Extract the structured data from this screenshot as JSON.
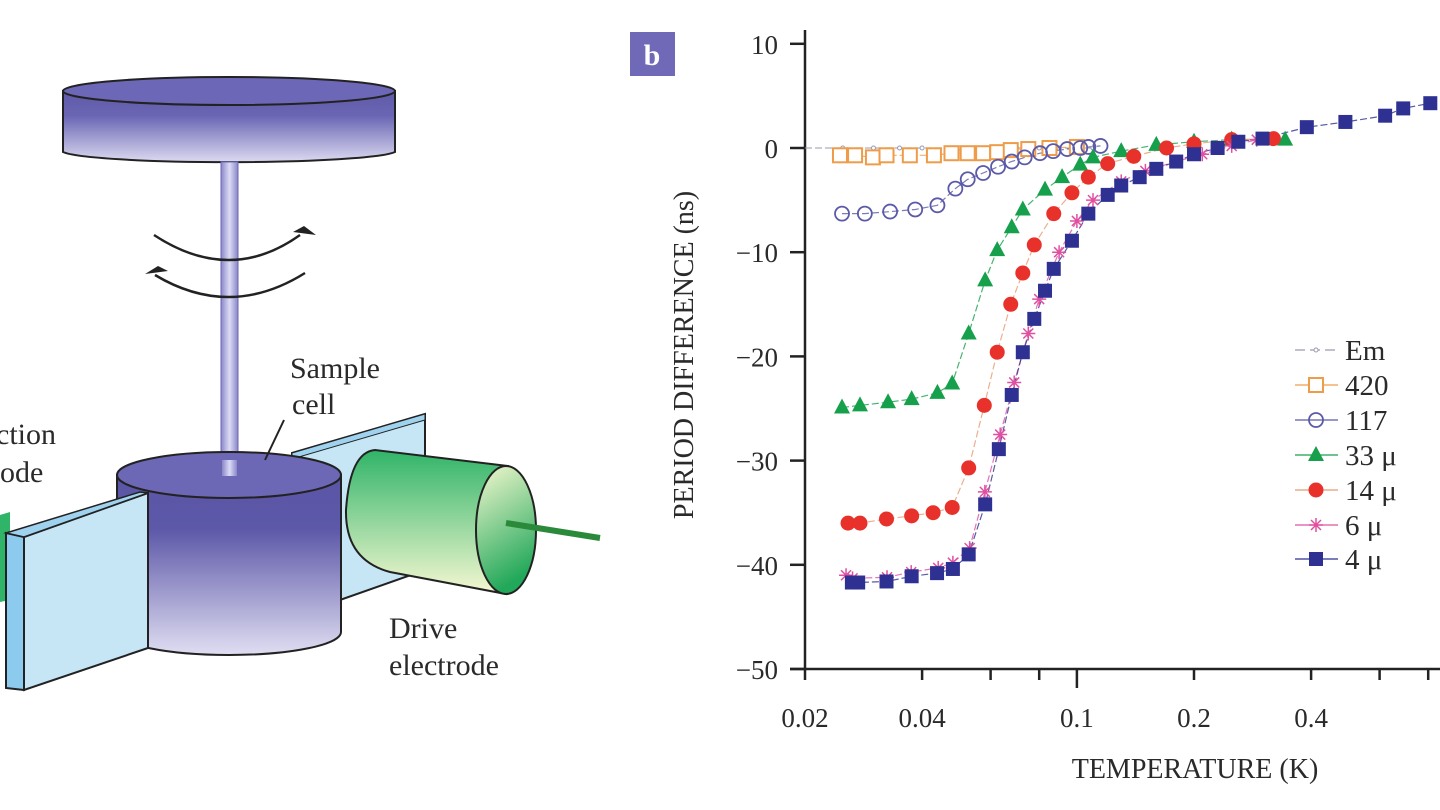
{
  "diagram": {
    "labels": {
      "sample_cell_line1": "Sample",
      "sample_cell_line2": "cell",
      "detection_line1": "ction",
      "detection_line2": "ode",
      "drive_line1": "Drive",
      "drive_line2": "electrode"
    },
    "colors": {
      "disk": "#6b66b4",
      "plate": "#c6e6f6",
      "electrode": "#2fb36a",
      "rod": "#2a8a3a"
    }
  },
  "panel_label": "b",
  "chart_data": {
    "type": "scatter",
    "xlabel": "TEMPERATURE (K)",
    "ylabel": "PERIOD DIFFERENCE (ns)",
    "xscale": "log",
    "xlim": [
      0.02,
      0.86
    ],
    "ylim": [
      -50,
      10
    ],
    "x_ticks": [
      {
        "value": 0.02,
        "label": "0.02"
      },
      {
        "value": 0.04,
        "label": "0.04"
      },
      {
        "value": 0.1,
        "label": "0.1"
      },
      {
        "value": 0.2,
        "label": "0.2"
      },
      {
        "value": 0.4,
        "label": "0.4"
      }
    ],
    "x_minor_ticks": [
      0.06,
      0.08,
      0.6,
      0.8
    ],
    "y_ticks": [
      {
        "value": 10,
        "label": "10"
      },
      {
        "value": 0,
        "label": "0"
      },
      {
        "value": -10,
        "label": "−10"
      },
      {
        "value": -20,
        "label": "−20"
      },
      {
        "value": -30,
        "label": "−30"
      },
      {
        "value": -40,
        "label": "−40"
      },
      {
        "value": -50,
        "label": "−50"
      }
    ],
    "grid": false,
    "legend_position": "right",
    "series": [
      {
        "name": "Em",
        "marker": "dot",
        "color": "#9a9ab0",
        "x": [
          0.025,
          0.03,
          0.035,
          0.04,
          0.05,
          0.06,
          0.07,
          0.08,
          0.09,
          0.1,
          0.11
        ],
        "y": [
          0,
          0,
          0,
          0,
          0,
          0,
          0,
          0,
          0,
          0,
          0
        ]
      },
      {
        "name": "420",
        "marker": "open-square",
        "color": "#ef9c4a",
        "x": [
          0.0246,
          0.0269,
          0.0299,
          0.0324,
          0.0372,
          0.0429,
          0.0476,
          0.0524,
          0.0574,
          0.0624,
          0.0676,
          0.075,
          0.085,
          0.1
        ],
        "y": [
          -0.7,
          -0.7,
          -0.9,
          -0.7,
          -0.7,
          -0.7,
          -0.5,
          -0.5,
          -0.5,
          -0.4,
          -0.2,
          -0.1,
          0,
          0.1
        ]
      },
      {
        "name": "117",
        "marker": "open-circle",
        "color": "#5b5aa8",
        "x": [
          0.0249,
          0.0285,
          0.0331,
          0.0384,
          0.0438,
          0.0487,
          0.0524,
          0.0574,
          0.0627,
          0.068,
          0.0734,
          0.0804,
          0.0869,
          0.0944,
          0.102,
          0.107,
          0.115
        ],
        "y": [
          -6.3,
          -6.3,
          -6.1,
          -5.9,
          -5.5,
          -3.9,
          -3.0,
          -2.4,
          -1.8,
          -1.3,
          -0.9,
          -0.5,
          -0.3,
          -0.1,
          0,
          0.1,
          0.2
        ]
      },
      {
        "name": "33 μ",
        "marker": "triangle",
        "color": "#17a04c",
        "x": [
          0.0249,
          0.0277,
          0.0327,
          0.0376,
          0.0438,
          0.0478,
          0.0527,
          0.0581,
          0.0624,
          0.068,
          0.0726,
          0.0828,
          0.0916,
          0.102,
          0.11,
          0.13,
          0.16,
          0.2,
          0.25,
          0.343
        ],
        "y": [
          -24.9,
          -24.7,
          -24.4,
          -24.1,
          -23.5,
          -22.6,
          -17.8,
          -12.7,
          -9.8,
          -7.6,
          -5.9,
          -4.0,
          -2.8,
          -1.6,
          -0.9,
          -0.3,
          0.3,
          0.6,
          0.8,
          0.8
        ]
      },
      {
        "name": "14 μ",
        "marker": "circle",
        "color": "#e8312a",
        "line_color": "#e89a70",
        "x": [
          0.0258,
          0.0277,
          0.0324,
          0.0376,
          0.0427,
          0.0478,
          0.0527,
          0.0578,
          0.0624,
          0.0676,
          0.0726,
          0.0777,
          0.0872,
          0.0971,
          0.107,
          0.12,
          0.14,
          0.17,
          0.2,
          0.25,
          0.32
        ],
        "y": [
          -36.0,
          -36.0,
          -35.6,
          -35.3,
          -35.0,
          -34.5,
          -30.7,
          -24.7,
          -19.6,
          -15.0,
          -12.0,
          -9.3,
          -6.3,
          -4.3,
          -2.8,
          -1.5,
          -0.8,
          0,
          0.4,
          0.8,
          0.9
        ]
      },
      {
        "name": "6 μ",
        "marker": "star",
        "color": "#e050a0",
        "x": [
          0.0255,
          0.0265,
          0.0325,
          0.0375,
          0.044,
          0.048,
          0.053,
          0.058,
          0.0635,
          0.069,
          0.075,
          0.08,
          0.09,
          0.1,
          0.11,
          0.13,
          0.15,
          0.18,
          0.21,
          0.25,
          0.29
        ],
        "y": [
          -41,
          -41.3,
          -41.2,
          -40.7,
          -40.3,
          -39.8,
          -38.4,
          -33,
          -27.5,
          -22.5,
          -17.8,
          -14.5,
          -10,
          -7,
          -5,
          -3.2,
          -2.2,
          -1.3,
          -0.6,
          0.2,
          0.8
        ]
      },
      {
        "name": "4 μ",
        "marker": "square",
        "color": "#2e3192",
        "x": [
          0.0264,
          0.0274,
          0.0324,
          0.0376,
          0.0437,
          0.048,
          0.0527,
          0.0581,
          0.063,
          0.068,
          0.0726,
          0.0777,
          0.0828,
          0.0872,
          0.0971,
          0.107,
          0.12,
          0.13,
          0.145,
          0.16,
          0.18,
          0.2,
          0.23,
          0.26,
          0.3,
          0.39,
          0.49,
          0.62,
          0.69,
          0.81
        ],
        "y": [
          -41.7,
          -41.7,
          -41.6,
          -41.1,
          -40.8,
          -40.4,
          -39.0,
          -34.2,
          -28.9,
          -23.7,
          -19.6,
          -16.4,
          -13.7,
          -11.6,
          -8.9,
          -6.3,
          -4.5,
          -3.6,
          -2.8,
          -2.0,
          -1.3,
          -0.6,
          0,
          0.6,
          0.9,
          2.0,
          2.5,
          3.1,
          3.8,
          4.3
        ]
      }
    ]
  }
}
